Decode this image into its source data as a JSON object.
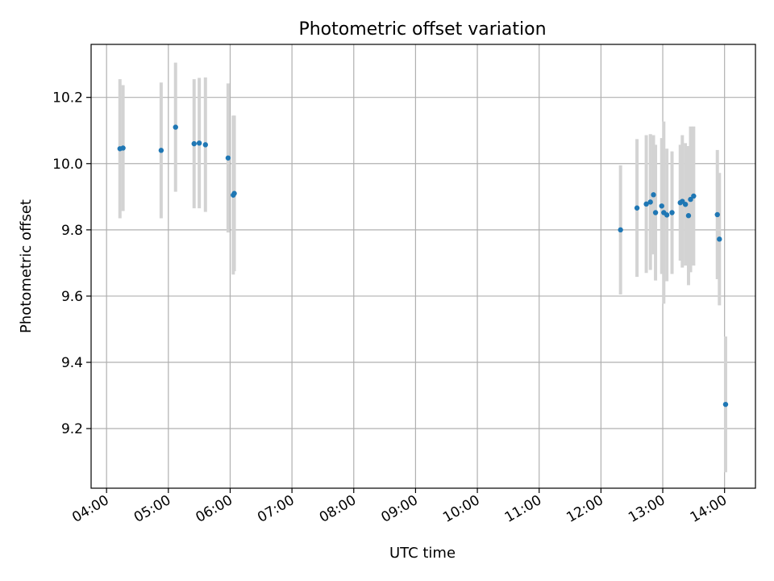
{
  "chart_data": {
    "type": "scatter",
    "title": "Photometric offset variation",
    "xlabel": "UTC time",
    "ylabel": "Photometric offset",
    "xlim": [
      "03:45",
      "14:30"
    ],
    "ylim": [
      9.02,
      10.36
    ],
    "x_ticks": [
      "04:00",
      "05:00",
      "06:00",
      "07:00",
      "08:00",
      "09:00",
      "10:00",
      "11:00",
      "12:00",
      "13:00",
      "14:00"
    ],
    "y_ticks": [
      9.2,
      9.4,
      9.6,
      9.8,
      10.0,
      10.2
    ],
    "grid": true,
    "marker_color": "#1f77b4",
    "errorbar_color": "#d3d3d3",
    "series": [
      {
        "points": [
          {
            "t": "04:13",
            "y": 10.045,
            "err": 0.21
          },
          {
            "t": "04:16",
            "y": 10.047,
            "err": 0.19
          },
          {
            "t": "04:53",
            "y": 10.04,
            "err": 0.205
          },
          {
            "t": "05:07",
            "y": 10.11,
            "err": 0.195
          },
          {
            "t": "05:25",
            "y": 10.06,
            "err": 0.195
          },
          {
            "t": "05:30",
            "y": 10.062,
            "err": 0.197
          },
          {
            "t": "05:36",
            "y": 10.057,
            "err": 0.203
          },
          {
            "t": "05:58",
            "y": 10.017,
            "err": 0.225
          },
          {
            "t": "06:03",
            "y": 9.905,
            "err": 0.24
          },
          {
            "t": "06:04",
            "y": 9.91,
            "err": 0.235
          },
          {
            "t": "12:19",
            "y": 9.8,
            "err": 0.195
          },
          {
            "t": "12:35",
            "y": 9.866,
            "err": 0.208
          },
          {
            "t": "12:44",
            "y": 9.878,
            "err": 0.208
          },
          {
            "t": "12:48",
            "y": 9.884,
            "err": 0.205
          },
          {
            "t": "12:51",
            "y": 9.906,
            "err": 0.18
          },
          {
            "t": "12:53",
            "y": 9.852,
            "err": 0.205
          },
          {
            "t": "12:59",
            "y": 9.872,
            "err": 0.205
          },
          {
            "t": "13:01",
            "y": 9.852,
            "err": 0.275
          },
          {
            "t": "13:04",
            "y": 9.845,
            "err": 0.2
          },
          {
            "t": "13:09",
            "y": 9.852,
            "err": 0.185
          },
          {
            "t": "13:17",
            "y": 9.882,
            "err": 0.175
          },
          {
            "t": "13:19",
            "y": 9.886,
            "err": 0.2
          },
          {
            "t": "13:22",
            "y": 9.877,
            "err": 0.185
          },
          {
            "t": "13:25",
            "y": 9.843,
            "err": 0.21
          },
          {
            "t": "13:27",
            "y": 9.892,
            "err": 0.22
          },
          {
            "t": "13:30",
            "y": 9.902,
            "err": 0.21
          },
          {
            "t": "13:53",
            "y": 9.846,
            "err": 0.195
          },
          {
            "t": "13:55",
            "y": 9.772,
            "err": 0.2
          },
          {
            "t": "14:01",
            "y": 9.273,
            "err": 0.205
          }
        ]
      }
    ]
  }
}
